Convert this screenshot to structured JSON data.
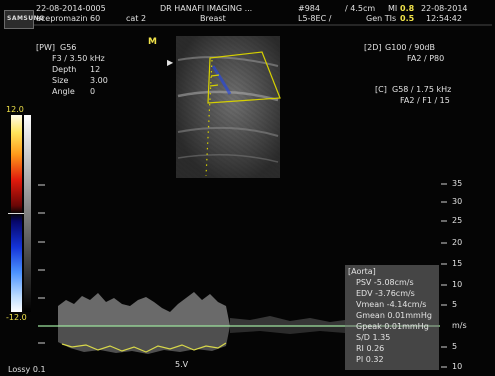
{
  "header": {
    "exam_id": "22-08-2014-0005",
    "sedation": "acepromazin 60",
    "category": "cat 2",
    "institution": "DR HANAFI IMAGING ...",
    "exam": "Breast",
    "image_number": "#984",
    "depth": "/ 4.5cm",
    "mi_label": "MI",
    "mi_value": "0.8",
    "probe": "L5-8EC /",
    "tis_label": "Gen TIs",
    "tis_value": "0.5",
    "date": "22-08-2014",
    "time": "12:54:42"
  },
  "logo_text": "SAMSUNG",
  "probe_marker": "M",
  "pw_panel": {
    "title": "[PW]",
    "gain": "G56",
    "freq": "F3 / 3.50 kHz",
    "depth_label": "Depth",
    "depth_value": "12",
    "size_label": "Size",
    "size_value": "3.00",
    "angle_label": "Angle",
    "angle_value": "0"
  },
  "mode_2d": {
    "title": "[2D]",
    "line1": "G100 / 90dB",
    "line2": "FA2 / P80"
  },
  "mode_color": {
    "title": "[C]",
    "line1": "G58 / 1.75 kHz",
    "line2": "FA2 / F1 / 15"
  },
  "color_scale": {
    "top": "12.0",
    "bottom": "-12.0"
  },
  "velocity_scale": {
    "labels": [
      "35",
      "30",
      "25",
      "20",
      "15",
      "10",
      "5",
      "m/s",
      "5",
      "10"
    ],
    "values": [
      35,
      30,
      25,
      20,
      15,
      10,
      5,
      0,
      -5,
      -10
    ],
    "unit": "m/s"
  },
  "measurement": {
    "title": "[Aorta]",
    "rows": [
      "PSV -5.08cm/s",
      "EDV -3.76cm/s",
      "Vmean -4.14cm/s",
      "Gmean 0.01mmHg",
      "Gpeak 0.01mmHg",
      "S/D 1.35",
      "RI 0.26",
      "PI 0.32"
    ]
  },
  "footer": {
    "lossy": "Lossy 0.1",
    "scale_mark": "5.V"
  },
  "colors": {
    "background": "#050505",
    "text": "#e2e2e2",
    "header_highlight": "#f0e24a",
    "roi_box": "#d6d000",
    "baseline": "#9ee39e",
    "trace": "#d8d84a"
  }
}
